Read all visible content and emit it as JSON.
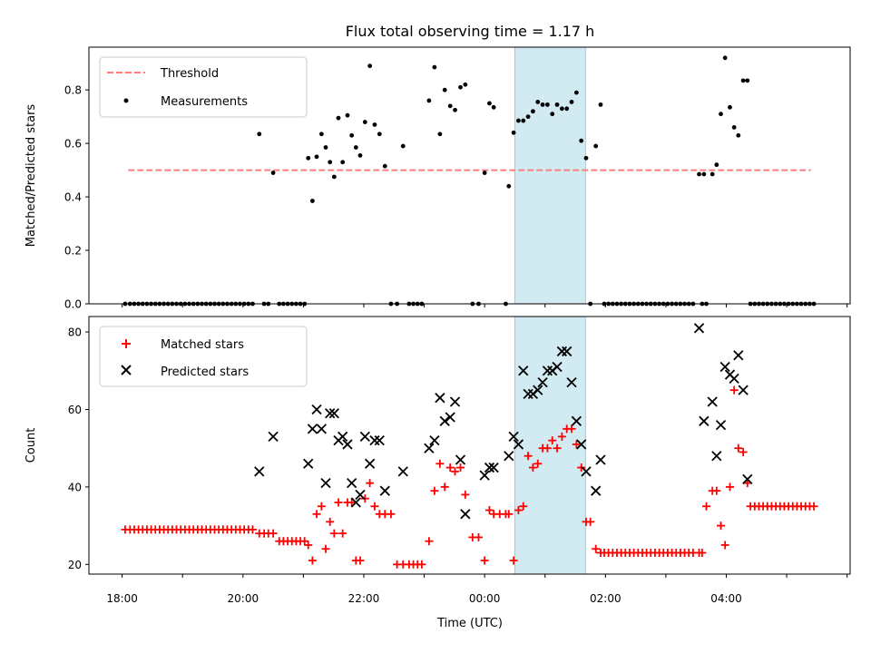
{
  "title": "Flux total observing time = 1.17 h",
  "colors": {
    "threshold": "#ff7f7f",
    "measurement": "#000000",
    "matched": "#ff0000",
    "predicted": "#000000",
    "shade": "#add8e6"
  },
  "chart_data": [
    {
      "type": "scatter",
      "name": "top",
      "ylabel": "Matched/Predicted stars",
      "xlim": [
        -0.55,
        12.05
      ],
      "ylim": [
        0,
        0.96
      ],
      "yticks": [
        0,
        0.2,
        0.4,
        0.6,
        0.8
      ],
      "ytick_labels": [
        "0.0",
        "0.2",
        "0.4",
        "0.6",
        "0.8"
      ],
      "xticks": [
        0,
        1,
        2,
        3,
        4,
        5,
        6,
        7,
        8,
        9,
        10,
        11,
        12
      ],
      "shaded_span": [
        6.5,
        7.67
      ],
      "legend": {
        "placement": "upper-left",
        "entries": [
          "Threshold",
          "Measurements"
        ]
      },
      "threshold": {
        "name": "Threshold",
        "value": 0.5,
        "x": [
          0.1,
          11.4
        ]
      },
      "zeros": {
        "name": "Measurements",
        "x": [
          0.05,
          0.13,
          0.2,
          0.27,
          0.34,
          0.41,
          0.48,
          0.55,
          0.62,
          0.69,
          0.76,
          0.83,
          0.9,
          0.97,
          1.04,
          1.11,
          1.18,
          1.25,
          1.32,
          1.39,
          1.46,
          1.53,
          1.6,
          1.67,
          1.74,
          1.81,
          1.88,
          1.95,
          2.02,
          2.09,
          2.16,
          2.35,
          2.42,
          2.6,
          2.67,
          2.74,
          2.81,
          2.88,
          2.95,
          3.02,
          4.45,
          4.55,
          4.75,
          4.82,
          4.89,
          4.96,
          5.8,
          5.9,
          6.35,
          7.75,
          7.98,
          8.05,
          8.12,
          8.19,
          8.26,
          8.33,
          8.4,
          8.47,
          8.54,
          8.61,
          8.68,
          8.75,
          8.82,
          8.89,
          8.96,
          9.03,
          9.1,
          9.17,
          9.24,
          9.31,
          9.38,
          9.45,
          9.6,
          9.67,
          10.4,
          10.47,
          10.54,
          10.61,
          10.68,
          10.75,
          10.82,
          10.89,
          10.96,
          11.03,
          11.1,
          11.17,
          11.24,
          11.31,
          11.38,
          11.45
        ],
        "y": [
          0,
          0,
          0,
          0,
          0,
          0,
          0,
          0,
          0,
          0,
          0,
          0,
          0,
          0,
          0,
          0,
          0,
          0,
          0,
          0,
          0,
          0,
          0,
          0,
          0,
          0,
          0,
          0,
          0,
          0,
          0,
          0,
          0,
          0,
          0,
          0,
          0,
          0,
          0,
          0,
          0,
          0,
          0,
          0,
          0,
          0,
          0,
          0,
          0,
          0,
          0,
          0,
          0,
          0,
          0,
          0,
          0,
          0,
          0,
          0,
          0,
          0,
          0,
          0,
          0,
          0,
          0,
          0,
          0,
          0,
          0,
          0,
          0,
          0,
          0,
          0,
          0,
          0,
          0,
          0,
          0,
          0,
          0,
          0,
          0,
          0,
          0,
          0,
          0,
          0
        ]
      },
      "measurements": {
        "name": "Measurements",
        "x": [
          2.27,
          2.5,
          3.08,
          3.15,
          3.22,
          3.3,
          3.37,
          3.44,
          3.51,
          3.58,
          3.65,
          3.73,
          3.8,
          3.87,
          3.94,
          4.02,
          4.1,
          4.18,
          4.26,
          4.35,
          4.65,
          5.08,
          5.17,
          5.26,
          5.34,
          5.43,
          5.51,
          5.6,
          5.68,
          6.0,
          6.08,
          6.15,
          6.4,
          6.48,
          6.56,
          6.64,
          6.72,
          6.8,
          6.88,
          6.96,
          7.04,
          7.12,
          7.2,
          7.28,
          7.36,
          7.44,
          7.52,
          7.6,
          7.68,
          7.84,
          7.92,
          9.55,
          9.63,
          9.77,
          9.84,
          9.91,
          9.98,
          10.06,
          10.13,
          10.2,
          10.28,
          10.35
        ],
        "y": [
          0.635,
          0.49,
          0.545,
          0.385,
          0.55,
          0.635,
          0.585,
          0.53,
          0.475,
          0.695,
          0.53,
          0.705,
          0.63,
          0.585,
          0.555,
          0.68,
          0.89,
          0.67,
          0.635,
          0.515,
          0.59,
          0.76,
          0.885,
          0.635,
          0.8,
          0.74,
          0.725,
          0.81,
          0.82,
          0.49,
          0.75,
          0.735,
          0.44,
          0.64,
          0.685,
          0.685,
          0.7,
          0.72,
          0.755,
          0.745,
          0.745,
          0.71,
          0.745,
          0.73,
          0.73,
          0.755,
          0.79,
          0.61,
          0.545,
          0.59,
          0.745,
          0.485,
          0.485,
          0.485,
          0.52,
          0.71,
          0.92,
          0.735,
          0.66,
          0.63,
          0.835,
          0.835
        ]
      }
    },
    {
      "type": "scatter",
      "name": "bottom",
      "ylabel": "Count",
      "xlabel": "Time (UTC)",
      "xlim": [
        -0.55,
        12.05
      ],
      "ylim": [
        17.5,
        84
      ],
      "yticks": [
        20,
        40,
        60,
        80
      ],
      "ytick_labels": [
        "20",
        "40",
        "60",
        "80"
      ],
      "xticks": [
        0,
        1,
        2,
        3,
        4,
        5,
        6,
        7,
        8,
        9,
        10,
        11,
        12
      ],
      "xtick_labels": [
        "18:00",
        "20:00",
        "22:00",
        "00:00",
        "02:00",
        "04:00"
      ],
      "xtick_label_positions": [
        0,
        2,
        4,
        6,
        8,
        10
      ],
      "shaded_span": [
        6.5,
        7.67
      ],
      "legend": {
        "placement": "upper-left",
        "entries": [
          "Matched stars",
          "Predicted stars"
        ]
      },
      "series": [
        {
          "name": "Matched stars",
          "marker": "plus",
          "x": [
            0.05,
            0.13,
            0.2,
            0.27,
            0.34,
            0.41,
            0.48,
            0.55,
            0.62,
            0.69,
            0.76,
            0.83,
            0.9,
            0.97,
            1.04,
            1.11,
            1.18,
            1.25,
            1.32,
            1.39,
            1.46,
            1.53,
            1.6,
            1.67,
            1.74,
            1.81,
            1.88,
            1.95,
            2.02,
            2.09,
            2.16,
            2.27,
            2.35,
            2.42,
            2.5,
            2.6,
            2.67,
            2.74,
            2.81,
            2.88,
            2.95,
            3.02,
            3.08,
            3.15,
            3.22,
            3.3,
            3.37,
            3.44,
            3.51,
            3.58,
            3.65,
            3.73,
            3.8,
            3.87,
            3.94,
            4.02,
            4.1,
            4.18,
            4.26,
            4.35,
            4.45,
            4.55,
            4.65,
            4.75,
            4.82,
            4.89,
            4.96,
            5.08,
            5.17,
            5.26,
            5.34,
            5.43,
            5.51,
            5.6,
            5.68,
            5.8,
            5.9,
            6.0,
            6.08,
            6.15,
            6.25,
            6.35,
            6.4,
            6.48,
            6.56,
            6.64,
            6.72,
            6.8,
            6.88,
            6.96,
            7.04,
            7.12,
            7.2,
            7.28,
            7.36,
            7.44,
            7.52,
            7.6,
            7.68,
            7.75,
            7.84,
            7.92,
            7.98,
            8.05,
            8.12,
            8.19,
            8.26,
            8.33,
            8.4,
            8.47,
            8.54,
            8.61,
            8.68,
            8.75,
            8.82,
            8.89,
            8.96,
            9.03,
            9.1,
            9.17,
            9.24,
            9.31,
            9.38,
            9.45,
            9.55,
            9.6,
            9.67,
            9.77,
            9.84,
            9.91,
            9.98,
            10.06,
            10.13,
            10.2,
            10.28,
            10.35,
            10.4,
            10.47,
            10.54,
            10.61,
            10.68,
            10.75,
            10.82,
            10.89,
            10.96,
            11.03,
            11.1,
            11.17,
            11.24,
            11.31,
            11.38,
            11.45
          ],
          "y": [
            29,
            29,
            29,
            29,
            29,
            29,
            29,
            29,
            29,
            29,
            29,
            29,
            29,
            29,
            29,
            29,
            29,
            29,
            29,
            29,
            29,
            29,
            29,
            29,
            29,
            29,
            29,
            29,
            29,
            29,
            29,
            28,
            28,
            28,
            28,
            26,
            26,
            26,
            26,
            26,
            26,
            26,
            25,
            21,
            33,
            35,
            24,
            31,
            28,
            36,
            28,
            36,
            36,
            21,
            21,
            37,
            41,
            35,
            33,
            33,
            33,
            20,
            20,
            20,
            20,
            20,
            20,
            26,
            39,
            46,
            40,
            45,
            44,
            45,
            38,
            27,
            27,
            21,
            34,
            33,
            33,
            33,
            33,
            21,
            34,
            35,
            48,
            45,
            46,
            50,
            50,
            52,
            50,
            53,
            55,
            55,
            51,
            45,
            31,
            31,
            24,
            23,
            23,
            23,
            23,
            23,
            23,
            23,
            23,
            23,
            23,
            23,
            23,
            23,
            23,
            23,
            23,
            23,
            23,
            23,
            23,
            23,
            23,
            23,
            23,
            23,
            35,
            39,
            39,
            30,
            25,
            40,
            65,
            50,
            49,
            41,
            35,
            35,
            35,
            35,
            35,
            35,
            35,
            35,
            35,
            35,
            35,
            35,
            35,
            35,
            35,
            35
          ]
        },
        {
          "name": "Predicted stars",
          "marker": "x",
          "x": [
            2.27,
            2.5,
            3.08,
            3.15,
            3.22,
            3.3,
            3.37,
            3.44,
            3.51,
            3.58,
            3.65,
            3.73,
            3.8,
            3.87,
            3.94,
            4.02,
            4.1,
            4.18,
            4.26,
            4.35,
            4.65,
            5.08,
            5.17,
            5.26,
            5.34,
            5.43,
            5.51,
            5.6,
            5.68,
            6.0,
            6.08,
            6.15,
            6.4,
            6.48,
            6.56,
            6.64,
            6.72,
            6.8,
            6.88,
            6.96,
            7.04,
            7.12,
            7.2,
            7.28,
            7.36,
            7.44,
            7.52,
            7.6,
            7.68,
            7.84,
            7.92,
            9.55,
            9.63,
            9.77,
            9.84,
            9.91,
            9.98,
            10.06,
            10.13,
            10.2,
            10.28,
            10.35
          ],
          "y": [
            44,
            53,
            46,
            55,
            60,
            55,
            41,
            59,
            59,
            52,
            53,
            51,
            41,
            36,
            38,
            53,
            46,
            52,
            52,
            39,
            44,
            50,
            52,
            63,
            57,
            58,
            62,
            47,
            33,
            43,
            45,
            45,
            48,
            53,
            51,
            70,
            64,
            64,
            65,
            67,
            70,
            70,
            71,
            75,
            75,
            67,
            57,
            51,
            44,
            39,
            47,
            81,
            57,
            62,
            48,
            56,
            71,
            69,
            68,
            74,
            65,
            42
          ]
        }
      ]
    }
  ]
}
